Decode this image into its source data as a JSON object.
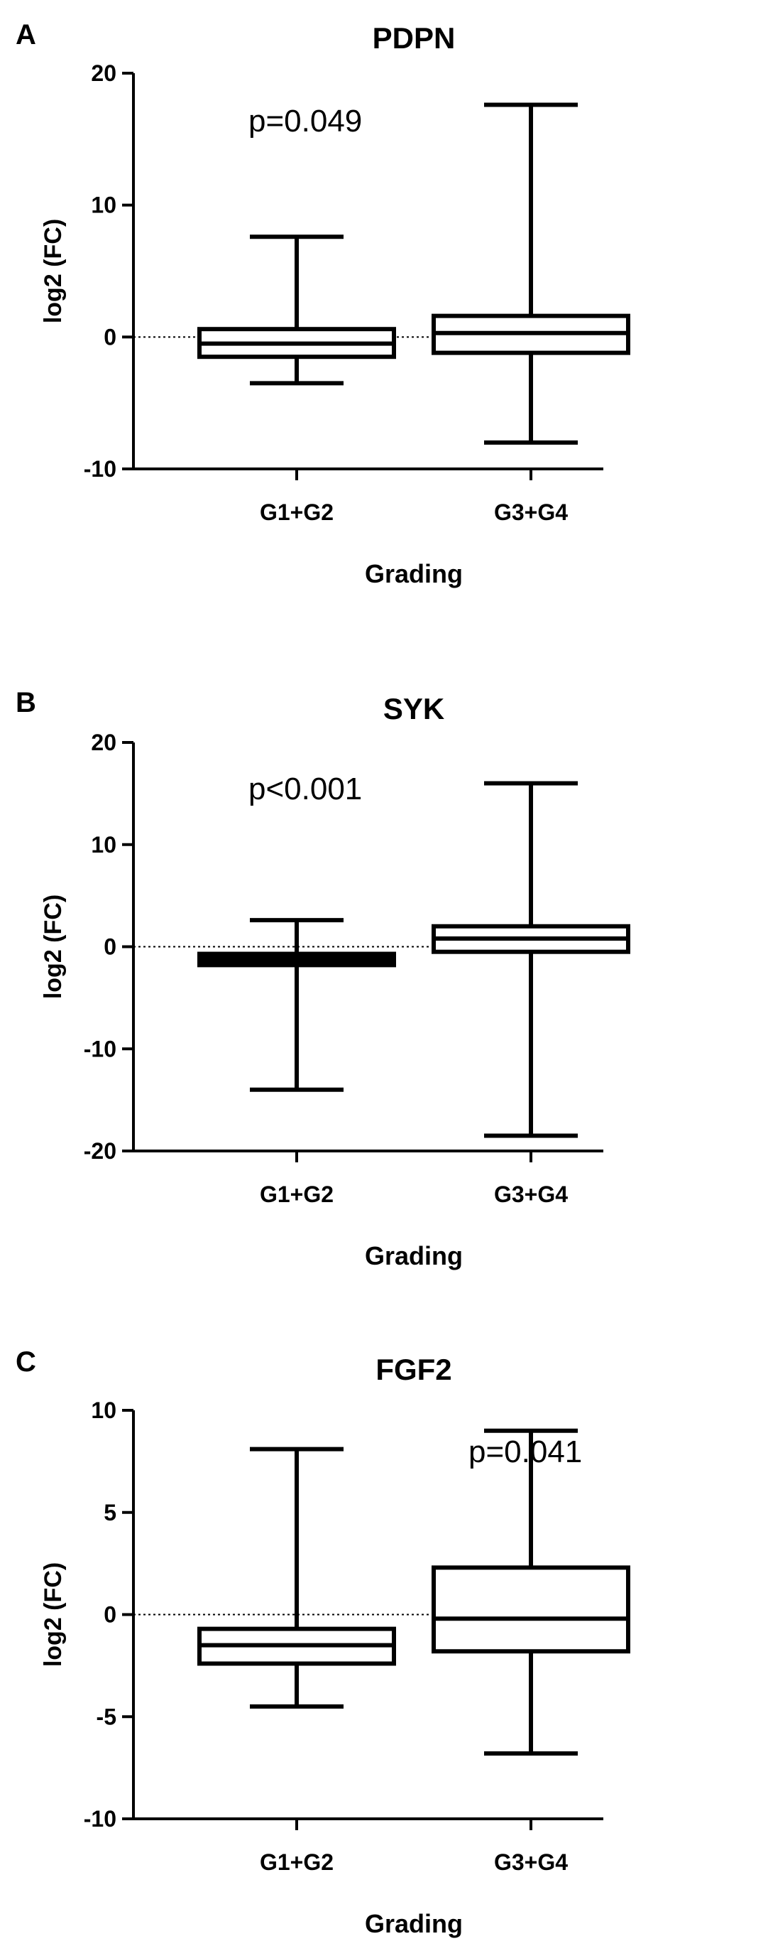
{
  "chart_data": [
    {
      "type": "box",
      "panel_label": "A",
      "title": "PDPN",
      "xlabel": "Grading",
      "ylabel": "log2 (FC)",
      "ylim": [
        -10,
        20
      ],
      "yticks": [
        -10,
        0,
        10,
        20
      ],
      "yticklabels": [
        "-10",
        "0",
        "10",
        "20"
      ],
      "reference_line": 0,
      "annotation": {
        "text": "p=0.049",
        "near": "G1+G2"
      },
      "categories": [
        "G1+G2",
        "G3+G4"
      ],
      "boxes": [
        {
          "name": "G1+G2",
          "min": -3.5,
          "q1": -1.5,
          "median": -0.5,
          "q3": 0.6,
          "max": 7.6,
          "filled": false
        },
        {
          "name": "G3+G4",
          "min": -8.0,
          "q1": -1.2,
          "median": 0.3,
          "q3": 1.6,
          "max": 17.6,
          "filled": false
        }
      ]
    },
    {
      "type": "box",
      "panel_label": "B",
      "title": "SYK",
      "xlabel": "Grading",
      "ylabel": "log2 (FC)",
      "ylim": [
        -20,
        20
      ],
      "yticks": [
        -20,
        -10,
        0,
        10,
        20
      ],
      "yticklabels": [
        "-20",
        "-10",
        "0",
        "10",
        "20"
      ],
      "reference_line": 0,
      "annotation": {
        "text": "p<0.001",
        "near": "G1+G2"
      },
      "categories": [
        "G1+G2",
        "G3+G4"
      ],
      "boxes": [
        {
          "name": "G1+G2",
          "min": -14.0,
          "q1": -1.8,
          "median": -1.3,
          "q3": -0.7,
          "max": 2.6,
          "filled": true
        },
        {
          "name": "G3+G4",
          "min": -18.5,
          "q1": -0.5,
          "median": 0.8,
          "q3": 2.0,
          "max": 16.0,
          "filled": false
        }
      ]
    },
    {
      "type": "box",
      "panel_label": "C",
      "title": "FGF2",
      "xlabel": "Grading",
      "ylabel": "log2 (FC)",
      "ylim": [
        -10,
        10
      ],
      "yticks": [
        -10,
        -5,
        0,
        5,
        10
      ],
      "yticklabels": [
        "-10",
        "-5",
        "0",
        "5",
        "10"
      ],
      "reference_line": 0,
      "annotation": {
        "text": "p=0.041",
        "near": "G3+G4"
      },
      "categories": [
        "G1+G2",
        "G3+G4"
      ],
      "boxes": [
        {
          "name": "G1+G2",
          "min": -4.5,
          "q1": -2.4,
          "median": -1.5,
          "q3": -0.7,
          "max": 8.1,
          "filled": false
        },
        {
          "name": "G3+G4",
          "min": -6.8,
          "q1": -1.8,
          "median": -0.2,
          "q3": 2.3,
          "max": 9.0,
          "filled": false
        }
      ]
    }
  ]
}
